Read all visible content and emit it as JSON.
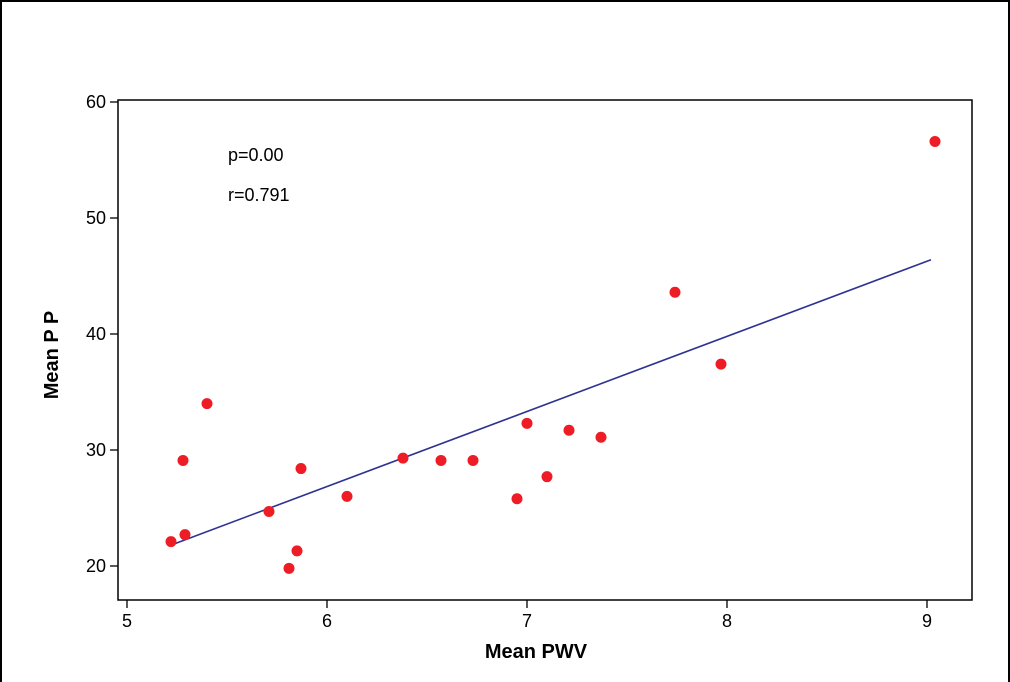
{
  "chart_data": {
    "type": "scatter",
    "title": "",
    "xlabel": "Mean PWV",
    "ylabel": "Mean P P",
    "xlim": [
      5,
      9.25
    ],
    "ylim": [
      18,
      61.5
    ],
    "x_ticks": [
      5,
      6,
      7,
      8,
      9
    ],
    "y_ticks": [
      20,
      30,
      40,
      50,
      60
    ],
    "annotations": [
      "p=0.00",
      "r=0.791"
    ],
    "grid": false,
    "colors": {
      "points": "#ee1c25",
      "fit_line": "#2e3192",
      "frame": "#000000"
    },
    "series": [
      {
        "points": [
          {
            "x": 5.22,
            "y": 22.1
          },
          {
            "x": 5.28,
            "y": 29.1
          },
          {
            "x": 5.29,
            "y": 22.7
          },
          {
            "x": 5.4,
            "y": 34.0
          },
          {
            "x": 5.71,
            "y": 24.7
          },
          {
            "x": 5.81,
            "y": 19.8
          },
          {
            "x": 5.85,
            "y": 21.3
          },
          {
            "x": 5.87,
            "y": 28.4
          },
          {
            "x": 6.1,
            "y": 26.0
          },
          {
            "x": 6.38,
            "y": 29.3
          },
          {
            "x": 6.57,
            "y": 29.1
          },
          {
            "x": 6.73,
            "y": 29.1
          },
          {
            "x": 6.95,
            "y": 25.8
          },
          {
            "x": 7.0,
            "y": 32.3
          },
          {
            "x": 7.1,
            "y": 27.7
          },
          {
            "x": 7.21,
            "y": 31.7
          },
          {
            "x": 7.37,
            "y": 31.1
          },
          {
            "x": 7.74,
            "y": 43.6
          },
          {
            "x": 7.97,
            "y": 37.4
          },
          {
            "x": 9.04,
            "y": 56.6
          }
        ]
      }
    ],
    "fit_line": {
      "x": [
        5.22,
        9.02
      ],
      "y": [
        21.8,
        46.4
      ]
    }
  }
}
